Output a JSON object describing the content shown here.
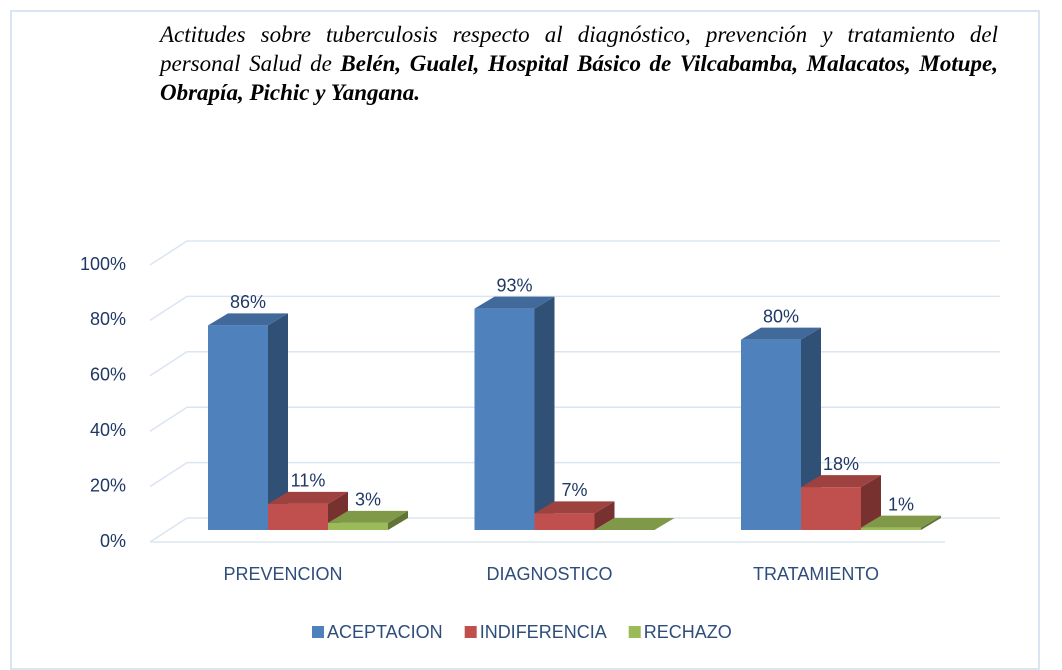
{
  "chart_data": {
    "type": "bar3d",
    "title": "Actitudes sobre tuberculosis respecto al diagnóstico, prevención y tratamiento del personal Salud de",
    "title_bold": "Belén, Gualel, Hospital Básico de Vilcabamba, Malacatos, Motupe, Obrapía, Pichic y Yangana.",
    "categories": [
      "PREVENCION",
      "DIAGNOSTICO",
      "TRATAMIENTO"
    ],
    "series": [
      {
        "name": "ACEPTACION",
        "color": "#4f81bd",
        "values": [
          86,
          93,
          80
        ],
        "value_labels": [
          "86%",
          "93%",
          "80%"
        ]
      },
      {
        "name": "INDIFERENCIA",
        "color": "#c0504d",
        "values": [
          11,
          7,
          18
        ],
        "value_labels": [
          "11%",
          "7%",
          "18%"
        ]
      },
      {
        "name": "RECHAZO",
        "color": "#9bbb59",
        "values": [
          3,
          0,
          1
        ],
        "value_labels": [
          "3%",
          null,
          "1%"
        ]
      }
    ],
    "ylim": [
      0,
      100
    ],
    "yticks": [
      {
        "value": 0,
        "label": "0%"
      },
      {
        "value": 20,
        "label": "20%"
      },
      {
        "value": 40,
        "label": "40%"
      },
      {
        "value": 60,
        "label": "60%"
      },
      {
        "value": 80,
        "label": "80%"
      },
      {
        "value": 100,
        "label": "100%"
      }
    ],
    "grid": true,
    "legend": "bottom"
  }
}
